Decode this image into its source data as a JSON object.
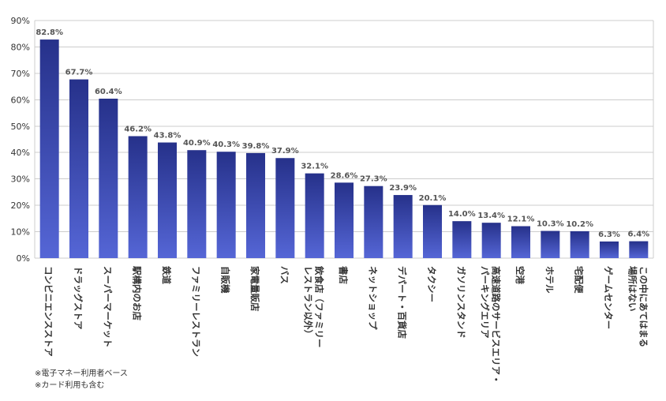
{
  "chart_data": {
    "type": "bar",
    "ylim": [
      0,
      90
    ],
    "y_ticks": [
      "0%",
      "10%",
      "20%",
      "30%",
      "40%",
      "50%",
      "60%",
      "70%",
      "80%",
      "90%"
    ],
    "grid": true,
    "categories": [
      "コンビニエンスストア",
      "ドラッグストア",
      "スーパーマーケット",
      "駅構内のお店",
      "鉄道",
      "ファミリーレストラン",
      "自販機",
      "家電量販店",
      "バス",
      "飲食店（ファミリーレストラン以外）",
      "書店",
      "ネットショップ",
      "デパート・百貨店",
      "タクシー",
      "ガソリンスタンド",
      "高速道路のサービスエリア・パーキングエリア",
      "空港",
      "ホテル",
      "宅配便",
      "ゲームセンター",
      "この中にあてはまる場所はない"
    ],
    "category_lines": [
      [
        "コンビニエンスストア"
      ],
      [
        "ドラッグストア"
      ],
      [
        "スーパーマーケット"
      ],
      [
        "駅構内のお店"
      ],
      [
        "鉄道"
      ],
      [
        "ファミリーレストラン"
      ],
      [
        "自販機"
      ],
      [
        "家電量販店"
      ],
      [
        "バス"
      ],
      [
        "飲食店（ファミリー",
        "レストラン以外）"
      ],
      [
        "書店"
      ],
      [
        "ネットショップ"
      ],
      [
        "デパート・百貨店"
      ],
      [
        "タクシー"
      ],
      [
        "ガソリンスタンド"
      ],
      [
        "高速道路のサービスエリア・",
        "パーキングエリア"
      ],
      [
        "空港"
      ],
      [
        "ホテル"
      ],
      [
        "宅配便"
      ],
      [
        "ゲームセンター"
      ],
      [
        "この中にあてはまる",
        "場所はない"
      ]
    ],
    "values": [
      82.8,
      67.7,
      60.4,
      46.2,
      43.8,
      40.9,
      40.3,
      39.8,
      37.9,
      32.1,
      28.6,
      27.3,
      23.9,
      20.1,
      14.0,
      13.4,
      12.1,
      10.3,
      10.2,
      6.3,
      6.4
    ],
    "value_labels": [
      "82.8%",
      "67.7%",
      "60.4%",
      "46.2%",
      "43.8%",
      "40.9%",
      "40.3%",
      "39.8%",
      "37.9%",
      "32.1%",
      "28.6%",
      "27.3%",
      "23.9%",
      "20.1%",
      "14.0%",
      "13.4%",
      "12.1%",
      "10.3%",
      "10.2%",
      "6.3%",
      "6.4%"
    ],
    "colors": {
      "bar_top": "#26318a",
      "bar_bottom": "#5566d6",
      "grid": "#cccccc",
      "text": "#333333",
      "value_text": "#555555"
    }
  },
  "notes": [
    "※電子マネー利用者ベース",
    "※カード利用も含む"
  ]
}
